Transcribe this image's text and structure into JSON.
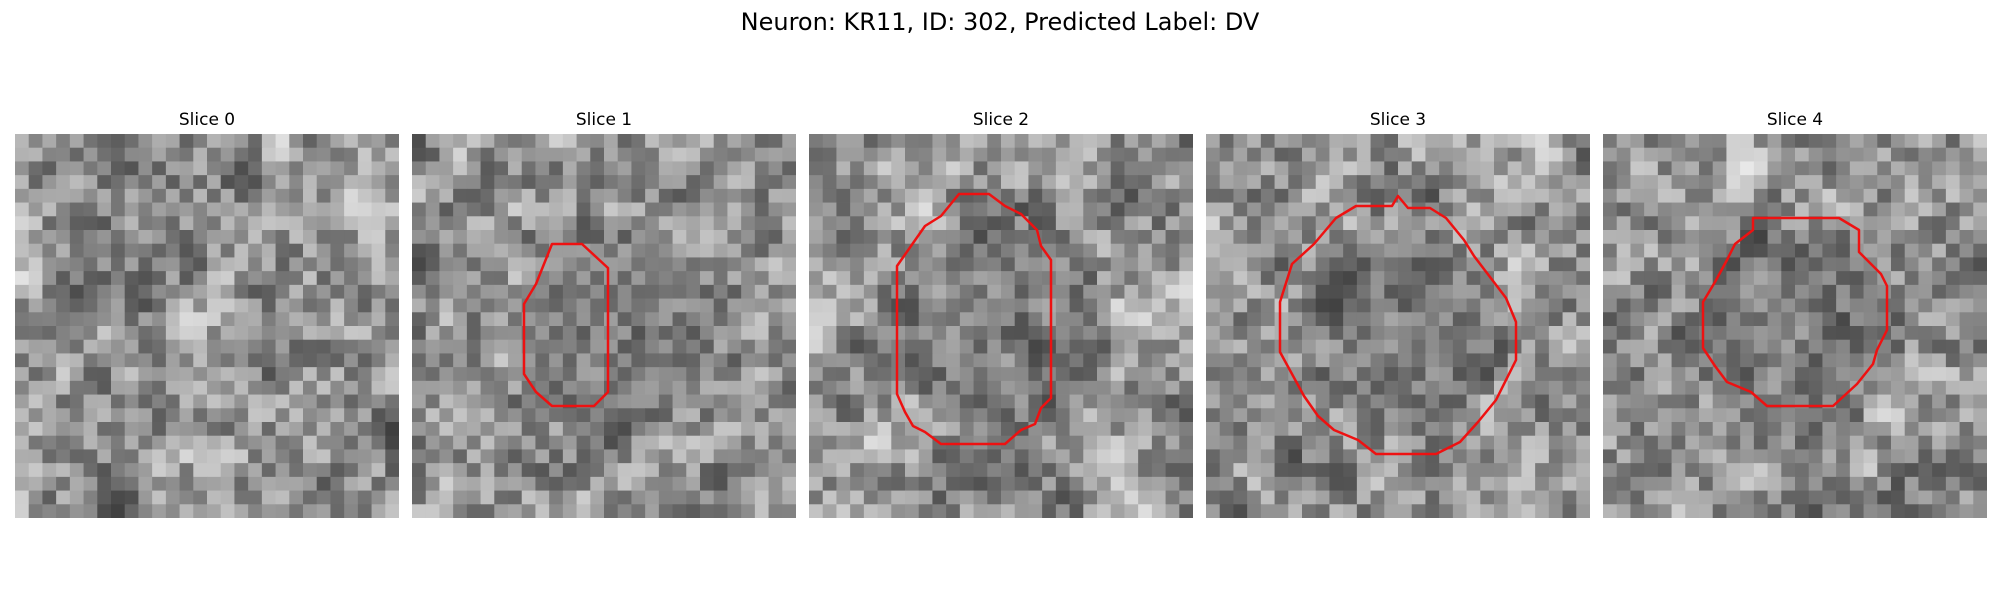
{
  "figure": {
    "title": "Neuron: KR11, ID: 302, Predicted Label: DV"
  },
  "panels": [
    {
      "title": "Slice 0",
      "has_contour": false
    },
    {
      "title": "Slice 1",
      "has_contour": true
    },
    {
      "title": "Slice 2",
      "has_contour": true
    },
    {
      "title": "Slice 3",
      "has_contour": true
    },
    {
      "title": "Slice 4",
      "has_contour": true
    }
  ],
  "colors": {
    "contour": "#ee1111",
    "background": "#ffffff"
  },
  "image": {
    "colormap": "gray",
    "grid_cells": 28
  }
}
